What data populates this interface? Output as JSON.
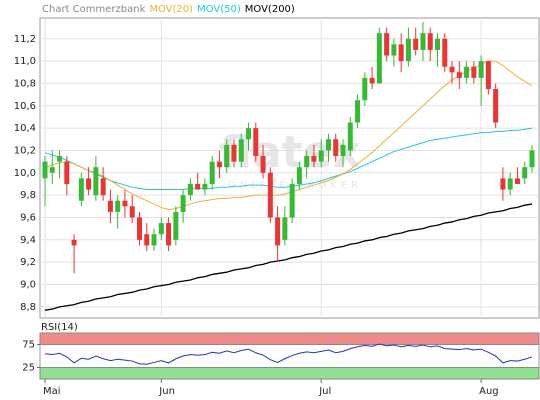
{
  "chart_data": [
    {
      "type": "candlestick",
      "title": "Chart Commerzbank",
      "title_color": "#888888",
      "watermark": "flatex",
      "watermark_sub": "ONLINE BROKER",
      "categories": [
        "Mai",
        null,
        null,
        null,
        null,
        null,
        null,
        null,
        null,
        null,
        null,
        null,
        null,
        null,
        null,
        null,
        "Jun",
        null,
        null,
        null,
        null,
        null,
        null,
        null,
        null,
        null,
        null,
        null,
        null,
        null,
        null,
        null,
        null,
        null,
        null,
        null,
        null,
        null,
        "Jul",
        null,
        null,
        null,
        null,
        null,
        null,
        null,
        null,
        null,
        null,
        null,
        null,
        null,
        null,
        null,
        null,
        null,
        null,
        null,
        null,
        null,
        "Aug",
        null,
        null,
        null,
        null,
        null,
        null,
        null
      ],
      "open": [
        9.95,
        10.0,
        10.1,
        10.1,
        9.4,
        9.75,
        9.95,
        9.8,
        9.95,
        9.75,
        9.65,
        9.75,
        9.7,
        9.6,
        9.45,
        9.35,
        9.45,
        9.55,
        9.4,
        9.65,
        9.8,
        9.9,
        9.85,
        9.9,
        10.1,
        10.05,
        10.25,
        10.1,
        10.3,
        10.4,
        10.15,
        10.0,
        9.6,
        9.4,
        9.6,
        9.9,
        10.05,
        10.15,
        10.1,
        10.2,
        10.3,
        10.15,
        10.2,
        10.45,
        10.65,
        10.85,
        10.8,
        11.25,
        11.05,
        11.15,
        11.0,
        11.2,
        11.1,
        11.25,
        11.1,
        11.2,
        10.95,
        10.9,
        10.85,
        10.95,
        10.85,
        11.0,
        10.75,
        9.95,
        9.85,
        9.95,
        9.95,
        10.05
      ],
      "high": [
        10.15,
        10.2,
        10.2,
        10.15,
        9.45,
        10.0,
        10.05,
        10.15,
        10.05,
        9.85,
        9.8,
        9.85,
        9.8,
        9.65,
        9.55,
        9.5,
        9.6,
        9.6,
        9.7,
        9.85,
        9.95,
        10.0,
        9.95,
        10.15,
        10.2,
        10.3,
        10.3,
        10.35,
        10.45,
        10.45,
        10.25,
        10.05,
        9.7,
        9.7,
        9.95,
        10.1,
        10.2,
        10.25,
        10.3,
        10.35,
        10.35,
        10.3,
        10.5,
        10.7,
        10.9,
        10.95,
        11.3,
        11.3,
        11.2,
        11.25,
        11.3,
        11.3,
        11.35,
        11.3,
        11.25,
        11.25,
        11.0,
        11.0,
        11.0,
        11.0,
        11.05,
        11.0,
        10.8,
        10.05,
        10.0,
        10.05,
        10.1,
        10.25
      ],
      "low": [
        9.7,
        9.9,
        9.95,
        9.8,
        9.1,
        9.7,
        9.8,
        9.75,
        9.75,
        9.55,
        9.5,
        9.6,
        9.55,
        9.35,
        9.3,
        9.3,
        9.4,
        9.3,
        9.35,
        9.55,
        9.75,
        9.85,
        9.8,
        9.85,
        9.95,
        10.0,
        10.05,
        10.05,
        10.2,
        10.1,
        9.95,
        9.55,
        9.2,
        9.35,
        9.55,
        9.85,
        9.95,
        10.05,
        10.05,
        10.1,
        10.1,
        10.05,
        10.15,
        10.4,
        10.6,
        10.75,
        10.8,
        11.0,
        10.95,
        10.9,
        10.95,
        11.05,
        11.0,
        11.0,
        10.95,
        10.9,
        10.8,
        10.75,
        10.8,
        10.8,
        10.6,
        10.7,
        10.4,
        9.75,
        9.8,
        9.9,
        9.9,
        10.0
      ],
      "close": [
        10.1,
        10.05,
        10.15,
        9.9,
        9.35,
        9.95,
        9.85,
        10.05,
        9.8,
        9.65,
        9.75,
        9.7,
        9.6,
        9.4,
        9.35,
        9.45,
        9.55,
        9.35,
        9.65,
        9.8,
        9.9,
        9.85,
        9.9,
        10.1,
        10.05,
        10.25,
        10.1,
        10.3,
        10.4,
        10.15,
        10.0,
        9.6,
        9.35,
        9.6,
        9.9,
        10.05,
        10.15,
        10.1,
        10.2,
        10.3,
        10.15,
        10.25,
        10.45,
        10.65,
        10.85,
        10.8,
        11.25,
        11.05,
        11.15,
        11.0,
        11.2,
        11.1,
        11.25,
        11.1,
        11.2,
        10.95,
        10.9,
        10.85,
        10.95,
        10.85,
        11.0,
        10.75,
        10.45,
        9.85,
        9.95,
        9.9,
        10.05,
        10.2
      ],
      "up_color": "#33bb33",
      "down_color": "#ee3333",
      "series": [
        {
          "name": "MOV(20)",
          "color": "#f0b030",
          "values": [
            10.05,
            10.07,
            10.09,
            10.1,
            10.08,
            10.05,
            10.02,
            10.0,
            9.97,
            9.93,
            9.89,
            9.85,
            9.81,
            9.78,
            9.75,
            9.72,
            9.69,
            9.67,
            9.68,
            9.7,
            9.72,
            9.74,
            9.75,
            9.76,
            9.77,
            9.77,
            9.78,
            9.78,
            9.79,
            9.8,
            9.8,
            9.8,
            9.8,
            9.81,
            9.83,
            9.85,
            9.87,
            9.89,
            9.91,
            9.93,
            9.96,
            9.99,
            10.03,
            10.08,
            10.13,
            10.18,
            10.24,
            10.3,
            10.36,
            10.42,
            10.48,
            10.54,
            10.6,
            10.66,
            10.72,
            10.78,
            10.83,
            10.87,
            10.91,
            10.94,
            10.97,
            11.0,
            11.0,
            10.96,
            10.91,
            10.86,
            10.82,
            10.78
          ]
        },
        {
          "name": "MOV(50)",
          "color": "#22c8dd",
          "values": [
            10.18,
            10.16,
            10.14,
            10.11,
            10.08,
            10.05,
            10.02,
            9.99,
            9.96,
            9.93,
            9.91,
            9.89,
            9.87,
            9.86,
            9.85,
            9.85,
            9.85,
            9.85,
            9.85,
            9.85,
            9.86,
            9.86,
            9.86,
            9.86,
            9.87,
            9.87,
            9.88,
            9.88,
            9.89,
            9.89,
            9.89,
            9.88,
            9.87,
            9.87,
            9.88,
            9.89,
            9.9,
            9.91,
            9.93,
            9.95,
            9.97,
            9.99,
            10.01,
            10.04,
            10.07,
            10.1,
            10.13,
            10.16,
            10.19,
            10.21,
            10.23,
            10.25,
            10.27,
            10.29,
            10.3,
            10.31,
            10.32,
            10.33,
            10.34,
            10.35,
            10.36,
            10.36,
            10.37,
            10.37,
            10.38,
            10.38,
            10.39,
            10.4
          ]
        },
        {
          "name": "MOV(200)",
          "color": "#000000",
          "values": [
            8.77,
            8.78,
            8.8,
            8.81,
            8.82,
            8.84,
            8.85,
            8.87,
            8.88,
            8.89,
            8.91,
            8.92,
            8.93,
            8.95,
            8.96,
            8.98,
            8.99,
            9.0,
            9.02,
            9.03,
            9.04,
            9.06,
            9.07,
            9.09,
            9.1,
            9.11,
            9.13,
            9.14,
            9.15,
            9.17,
            9.18,
            9.2,
            9.21,
            9.22,
            9.24,
            9.25,
            9.27,
            9.28,
            9.3,
            9.31,
            9.33,
            9.34,
            9.36,
            9.37,
            9.39,
            9.4,
            9.42,
            9.43,
            9.45,
            9.46,
            9.48,
            9.49,
            9.5,
            9.52,
            9.53,
            9.55,
            9.56,
            9.58,
            9.59,
            9.61,
            9.62,
            9.64,
            9.65,
            9.66,
            9.68,
            9.69,
            9.71,
            9.72
          ]
        }
      ],
      "ylim": [
        8.7,
        11.35
      ],
      "yticks": [
        {
          "value": 8.8,
          "label": "8,8"
        },
        {
          "value": 9.0,
          "label": "9,0"
        },
        {
          "value": 9.2,
          "label": "9,2"
        },
        {
          "value": 9.4,
          "label": "9,4"
        },
        {
          "value": 9.6,
          "label": "9,6"
        },
        {
          "value": 9.8,
          "label": "9,8"
        },
        {
          "value": 10.0,
          "label": "10,0"
        },
        {
          "value": 10.2,
          "label": "10,2"
        },
        {
          "value": 10.4,
          "label": "10,4"
        },
        {
          "value": 10.6,
          "label": "10,6"
        },
        {
          "value": 10.8,
          "label": "10,8"
        },
        {
          "value": 11.0,
          "label": "11,0"
        },
        {
          "value": 11.2,
          "label": "11,2"
        }
      ],
      "grid": true
    },
    {
      "type": "line",
      "title": "RSI(14)",
      "series": [
        {
          "name": "RSI(14)",
          "color": "#2233cc",
          "values": [
            55,
            53,
            56,
            48,
            35,
            45,
            43,
            50,
            44,
            40,
            43,
            41,
            39,
            33,
            32,
            36,
            40,
            35,
            44,
            50,
            53,
            52,
            53,
            58,
            56,
            61,
            57,
            62,
            65,
            57,
            52,
            42,
            36,
            44,
            51,
            56,
            59,
            57,
            60,
            63,
            57,
            60,
            66,
            70,
            73,
            71,
            76,
            72,
            74,
            70,
            73,
            71,
            74,
            70,
            72,
            66,
            65,
            64,
            66,
            63,
            65,
            58,
            50,
            35,
            40,
            39,
            43,
            48
          ]
        }
      ],
      "bands": [
        {
          "from": 75,
          "to": 100,
          "color": "#f28a8a"
        },
        {
          "from": 0,
          "to": 25,
          "color": "#8fe08f"
        }
      ],
      "ylim": [
        0,
        100
      ],
      "yticks": [
        25,
        75
      ]
    }
  ]
}
